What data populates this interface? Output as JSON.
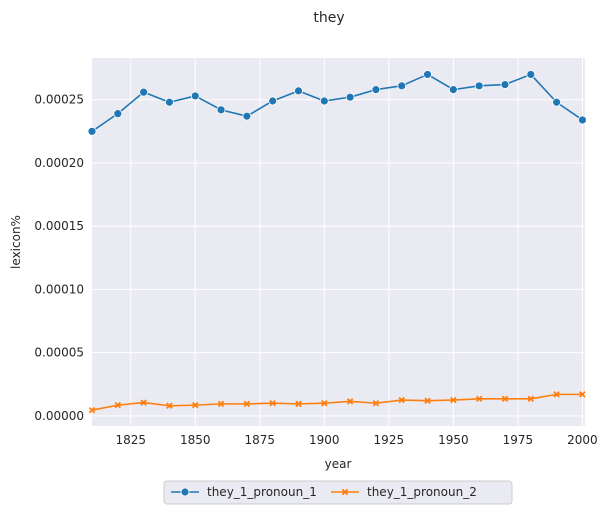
{
  "chart_data": {
    "type": "line",
    "title": "they",
    "xlabel": "year",
    "ylabel": "lexicon%",
    "xlim": [
      1810,
      2001
    ],
    "ylim": [
      -8e-06,
      0.000283
    ],
    "x_ticks": [
      1825,
      1850,
      1875,
      1900,
      1925,
      1950,
      1975,
      2000
    ],
    "x_tick_labels": [
      "1825",
      "1850",
      "1875",
      "1900",
      "1925",
      "1950",
      "1975",
      "2000"
    ],
    "y_ticks": [
      0,
      5e-05,
      0.0001,
      0.00015,
      0.0002,
      0.00025
    ],
    "y_tick_labels": [
      "0.00000",
      "0.00005",
      "0.00010",
      "0.00015",
      "0.00020",
      "0.00025"
    ],
    "grid": true,
    "legend_position": "bottom-center",
    "x": [
      1810,
      1820,
      1830,
      1840,
      1850,
      1860,
      1870,
      1880,
      1890,
      1900,
      1910,
      1920,
      1930,
      1940,
      1950,
      1960,
      1970,
      1980,
      1990,
      2000
    ],
    "series": [
      {
        "name": "they_1_pronoun_1",
        "color": "#1f77b4",
        "marker": "circle",
        "values": [
          0.000225,
          0.000239,
          0.000256,
          0.000248,
          0.000253,
          0.000242,
          0.000237,
          0.000249,
          0.000257,
          0.000249,
          0.000252,
          0.000258,
          0.000261,
          0.00027,
          0.000258,
          0.000261,
          0.000262,
          0.00027,
          0.000248,
          0.000234
        ]
      },
      {
        "name": "they_1_pronoun_2",
        "color": "#ff7f0e",
        "marker": "x",
        "values": [
          4.5e-06,
          8.5e-06,
          1.05e-05,
          8e-06,
          8.5e-06,
          9.5e-06,
          9.5e-06,
          1e-05,
          9.5e-06,
          1e-05,
          1.15e-05,
          1e-05,
          1.25e-05,
          1.2e-05,
          1.25e-05,
          1.35e-05,
          1.35e-05,
          1.35e-05,
          1.7e-05,
          1.7e-05
        ]
      }
    ]
  }
}
